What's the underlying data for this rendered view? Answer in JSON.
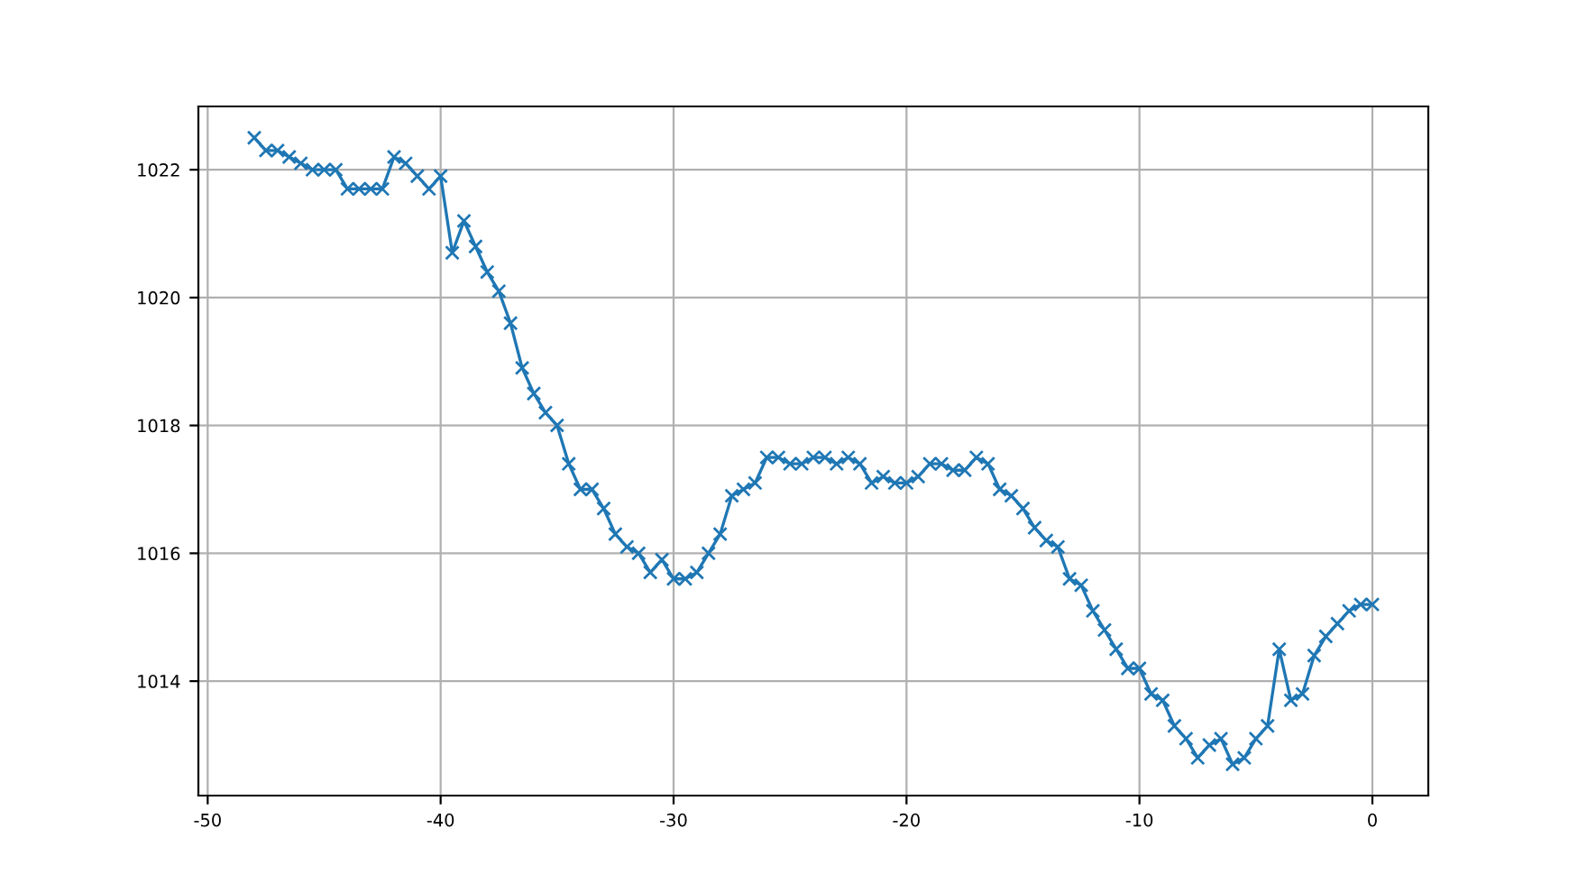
{
  "chart_data": {
    "type": "line",
    "marker": "cross",
    "grid": true,
    "x": [
      -48,
      -47.5,
      -47,
      -46.5,
      -46,
      -45.5,
      -45,
      -44.5,
      -44,
      -43.5,
      -43,
      -42.5,
      -42,
      -41.5,
      -41,
      -40.5,
      -40,
      -39.5,
      -39,
      -38.5,
      -38,
      -37.5,
      -37,
      -36.5,
      -36,
      -35.5,
      -35,
      -34.5,
      -34,
      -33.5,
      -33,
      -32.5,
      -32,
      -31.5,
      -31,
      -30.5,
      -30,
      -29.5,
      -29,
      -28.5,
      -28,
      -27.5,
      -27,
      -26.5,
      -26,
      -25.5,
      -25,
      -24.5,
      -24,
      -23.5,
      -23,
      -22.5,
      -22,
      -21.5,
      -21,
      -20.5,
      -20,
      -19.5,
      -19,
      -18.5,
      -18,
      -17.5,
      -17,
      -16.5,
      -16,
      -15.5,
      -15,
      -14.5,
      -14,
      -13.5,
      -13,
      -12.5,
      -12,
      -11.5,
      -11,
      -10.5,
      -10,
      -9.5,
      -9,
      -8.5,
      -8,
      -7.5,
      -7,
      -6.5,
      -6,
      -5.5,
      -5,
      -4.5,
      -4,
      -3.5,
      -3,
      -2.5,
      -2,
      -1.5,
      -1,
      -0.5,
      0
    ],
    "series": [
      {
        "color": "#1f77b4",
        "values": [
          1022.5,
          1022.3,
          1022.3,
          1022.2,
          1022.1,
          1022.0,
          1022.0,
          1022.0,
          1021.7,
          1021.7,
          1021.7,
          1021.7,
          1022.2,
          1022.1,
          1021.9,
          1021.7,
          1021.9,
          1020.7,
          1021.2,
          1020.8,
          1020.4,
          1020.1,
          1019.6,
          1018.9,
          1018.5,
          1018.2,
          1018.0,
          1017.4,
          1017.0,
          1017.0,
          1016.7,
          1016.3,
          1016.1,
          1016.0,
          1015.7,
          1015.9,
          1015.6,
          1015.6,
          1015.7,
          1016.0,
          1016.3,
          1016.9,
          1017.0,
          1017.1,
          1017.5,
          1017.5,
          1017.4,
          1017.4,
          1017.5,
          1017.5,
          1017.4,
          1017.5,
          1017.4,
          1017.1,
          1017.2,
          1017.1,
          1017.1,
          1017.2,
          1017.4,
          1017.4,
          1017.3,
          1017.3,
          1017.5,
          1017.4,
          1017.0,
          1016.9,
          1016.7,
          1016.4,
          1016.2,
          1016.1,
          1015.6,
          1015.5,
          1015.1,
          1014.8,
          1014.5,
          1014.2,
          1014.2,
          1013.8,
          1013.7,
          1013.3,
          1013.1,
          1012.8,
          1013.0,
          1013.1,
          1012.7,
          1012.8,
          1013.1,
          1013.3,
          1014.5,
          1013.7,
          1013.8,
          1014.4,
          1014.7,
          1014.9,
          1015.1,
          1015.2,
          1015.2
        ]
      }
    ],
    "xlim": [
      -50.4,
      2.4
    ],
    "ylim": [
      1012.21,
      1022.99
    ],
    "xticks": [
      -50,
      -40,
      -30,
      -20,
      -10,
      0
    ],
    "yticks": [
      1014,
      1016,
      1018,
      1020,
      1022
    ]
  }
}
